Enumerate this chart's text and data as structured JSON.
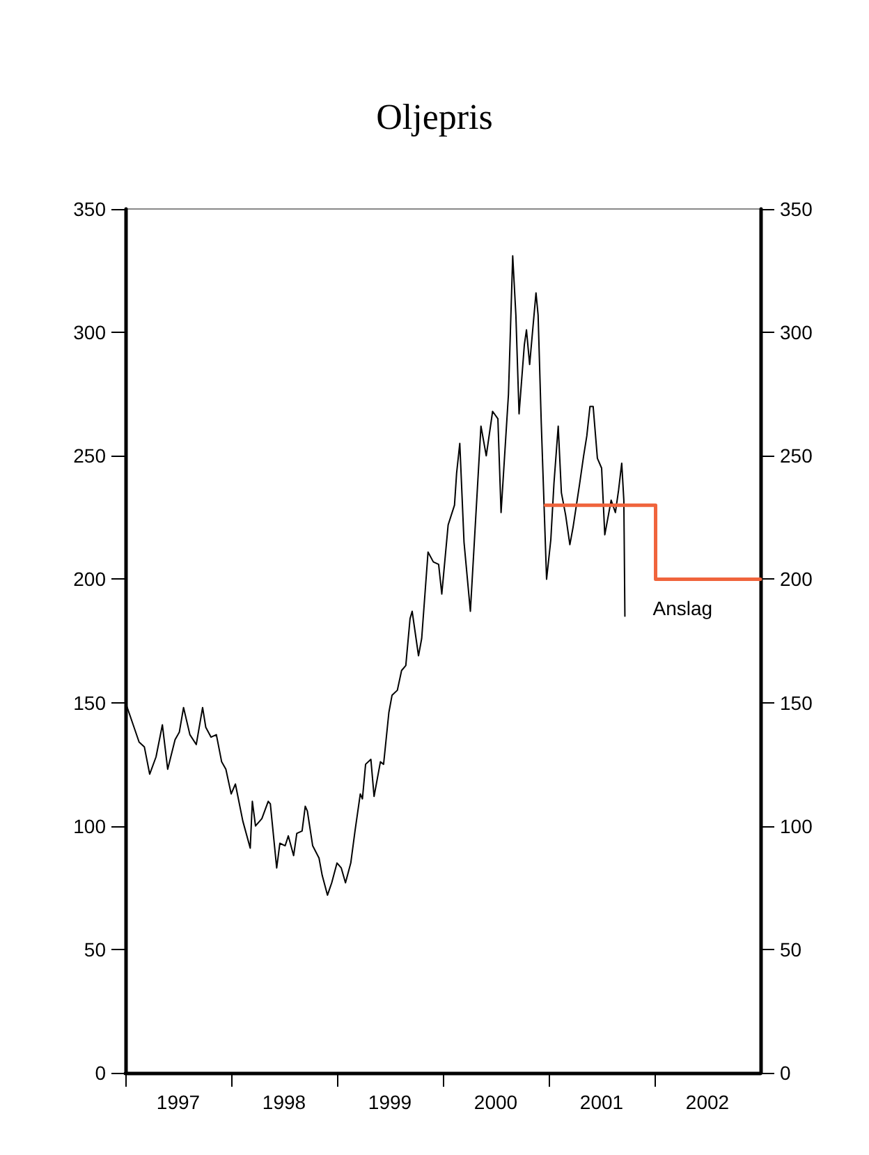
{
  "chart_data": {
    "type": "line",
    "title": "Oljepris",
    "xlim": [
      1997,
      2003
    ],
    "xticks": [
      {
        "value": 1997,
        "label": null
      },
      {
        "value": 1997.5,
        "label": "1997"
      },
      {
        "value": 1998,
        "label": null
      },
      {
        "value": 1998.5,
        "label": "1998"
      },
      {
        "value": 1999,
        "label": null
      },
      {
        "value": 1999.5,
        "label": "1999"
      },
      {
        "value": 2000,
        "label": null
      },
      {
        "value": 2000.5,
        "label": "2000"
      },
      {
        "value": 2001,
        "label": null
      },
      {
        "value": 2001.5,
        "label": "2001"
      },
      {
        "value": 2002,
        "label": null
      },
      {
        "value": 2002.5,
        "label": "2002"
      }
    ],
    "ylim": [
      0,
      350
    ],
    "yticks": [
      0,
      50,
      100,
      150,
      200,
      250,
      300,
      350
    ],
    "y2lim": [
      0,
      350
    ],
    "y2ticks": [
      0,
      50,
      100,
      150,
      200,
      250,
      300,
      350
    ],
    "grid": false,
    "marker": "none",
    "line_style": "solid",
    "annotations": [
      "Anslag"
    ],
    "series": [
      {
        "color": "#000000",
        "x": [
          1997.01,
          1997.09,
          1997.13,
          1997.18,
          1997.23,
          1997.29,
          1997.35,
          1997.4,
          1997.47,
          1997.51,
          1997.55,
          1997.61,
          1997.67,
          1997.73,
          1997.76,
          1997.81,
          1997.86,
          1997.91,
          1997.95,
          1998.0,
          1998.04,
          1998.11,
          1998.18,
          1998.2,
          1998.23,
          1998.29,
          1998.35,
          1998.37,
          1998.43,
          1998.46,
          1998.51,
          1998.54,
          1998.59,
          1998.62,
          1998.67,
          1998.7,
          1998.72,
          1998.77,
          1998.83,
          1998.86,
          1998.91,
          1998.95,
          1999.0,
          1999.04,
          1999.08,
          1999.13,
          1999.17,
          1999.22,
          1999.24,
          1999.27,
          1999.32,
          1999.35,
          1999.41,
          1999.44,
          1999.49,
          1999.52,
          1999.57,
          1999.61,
          1999.65,
          1999.69,
          1999.71,
          1999.77,
          1999.8,
          1999.86,
          1999.91,
          1999.96,
          1999.99,
          2000.05,
          2000.11,
          2000.13,
          2000.16,
          2000.2,
          2000.26,
          2000.36,
          2000.41,
          2000.47,
          2000.52,
          2000.55,
          2000.62,
          2000.66,
          2000.69,
          2000.72,
          2000.77,
          2000.79,
          2000.82,
          2000.88,
          2000.9,
          2000.93,
          2000.98,
          2001.02,
          2001.05,
          2001.09,
          2001.12,
          2001.16,
          2001.2,
          2001.23,
          2001.29,
          2001.33,
          2001.36,
          2001.39,
          2001.42,
          2001.46,
          2001.5,
          2001.53,
          2001.59,
          2001.63,
          2001.66,
          2001.69,
          2001.71,
          2001.72
        ],
        "values": [
          149,
          139,
          134,
          132,
          121,
          128,
          141,
          123,
          135,
          138,
          148,
          137,
          133,
          148,
          140,
          136,
          137,
          126,
          123,
          113,
          117,
          102,
          91,
          110,
          100,
          103,
          110,
          109,
          83,
          93,
          92,
          96,
          88,
          97,
          98,
          108,
          106,
          92,
          87,
          80,
          72,
          77,
          85,
          83,
          77,
          85,
          98,
          113,
          111,
          125,
          127,
          112,
          126,
          125,
          146,
          153,
          155,
          163,
          165,
          184,
          187,
          169,
          176,
          211,
          207,
          206,
          194,
          222,
          230,
          243,
          255,
          215,
          187,
          262,
          250,
          268,
          265,
          227,
          275,
          331,
          307,
          267,
          295,
          301,
          287,
          316,
          307,
          263,
          200,
          216,
          239,
          262,
          235,
          226,
          214,
          221,
          238,
          250,
          258,
          270,
          270,
          249,
          245,
          218,
          232,
          227,
          236,
          247,
          232,
          185
        ]
      },
      {
        "type": "step",
        "color": "#f0643c",
        "x": [
          2000.97,
          2002.01,
          2003.0
        ],
        "values": [
          230,
          200,
          200
        ]
      }
    ]
  }
}
